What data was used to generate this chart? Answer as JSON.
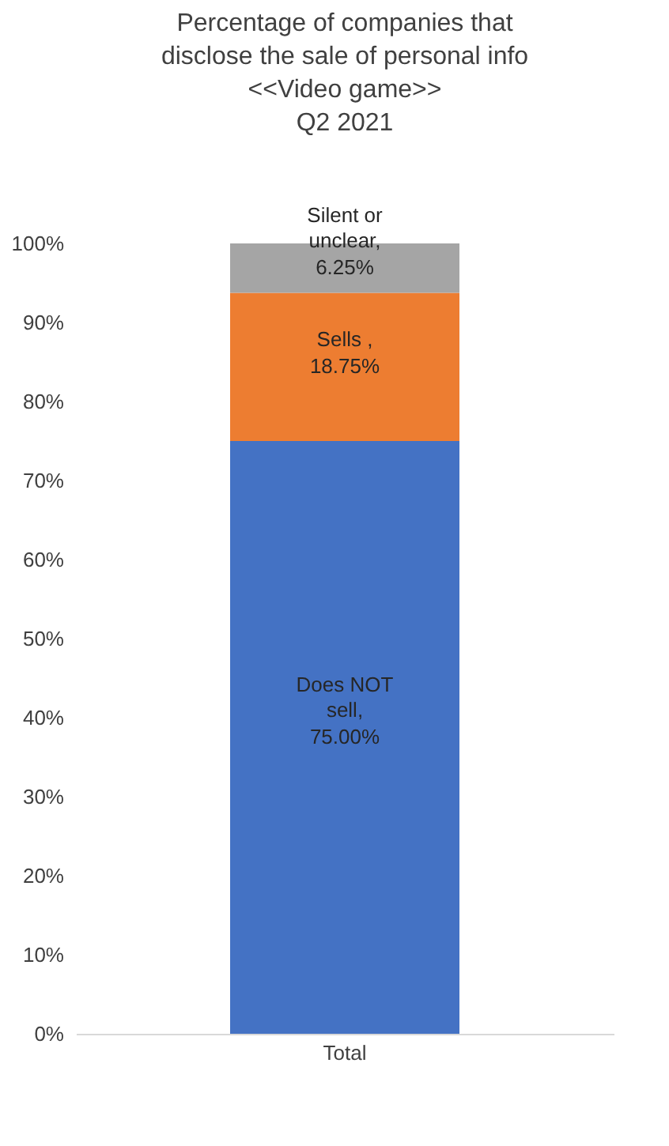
{
  "chart_data": {
    "type": "bar",
    "title": "Percentage of companies that\ndisclose the sale of personal info\n<<Video game>>\nQ2 2021",
    "categories": [
      "Total"
    ],
    "stacked": true,
    "grid": false,
    "series": [
      {
        "name": "Does NOT sell,",
        "color": "#4472c4",
        "values": [
          75
        ],
        "value_labels": [
          "75.00%"
        ]
      },
      {
        "name": "Sells ,",
        "color": "#ed7d31",
        "values": [
          18.75
        ],
        "value_labels": [
          "18.75%"
        ]
      },
      {
        "name": "Silent or unclear,",
        "color": "#a5a5a5",
        "values": [
          6.25
        ],
        "value_labels": [
          "6.25%"
        ]
      }
    ],
    "ylim": [
      0,
      100
    ],
    "yticks": [
      {
        "value": 0,
        "label": "0%"
      },
      {
        "value": 10,
        "label": "10%"
      },
      {
        "value": 20,
        "label": "20%"
      },
      {
        "value": 30,
        "label": "30%"
      },
      {
        "value": 40,
        "label": "40%"
      },
      {
        "value": 50,
        "label": "50%"
      },
      {
        "value": 60,
        "label": "60%"
      },
      {
        "value": 70,
        "label": "70%"
      },
      {
        "value": 80,
        "label": "80%"
      },
      {
        "value": 90,
        "label": "90%"
      },
      {
        "value": 100,
        "label": "100%"
      }
    ]
  }
}
